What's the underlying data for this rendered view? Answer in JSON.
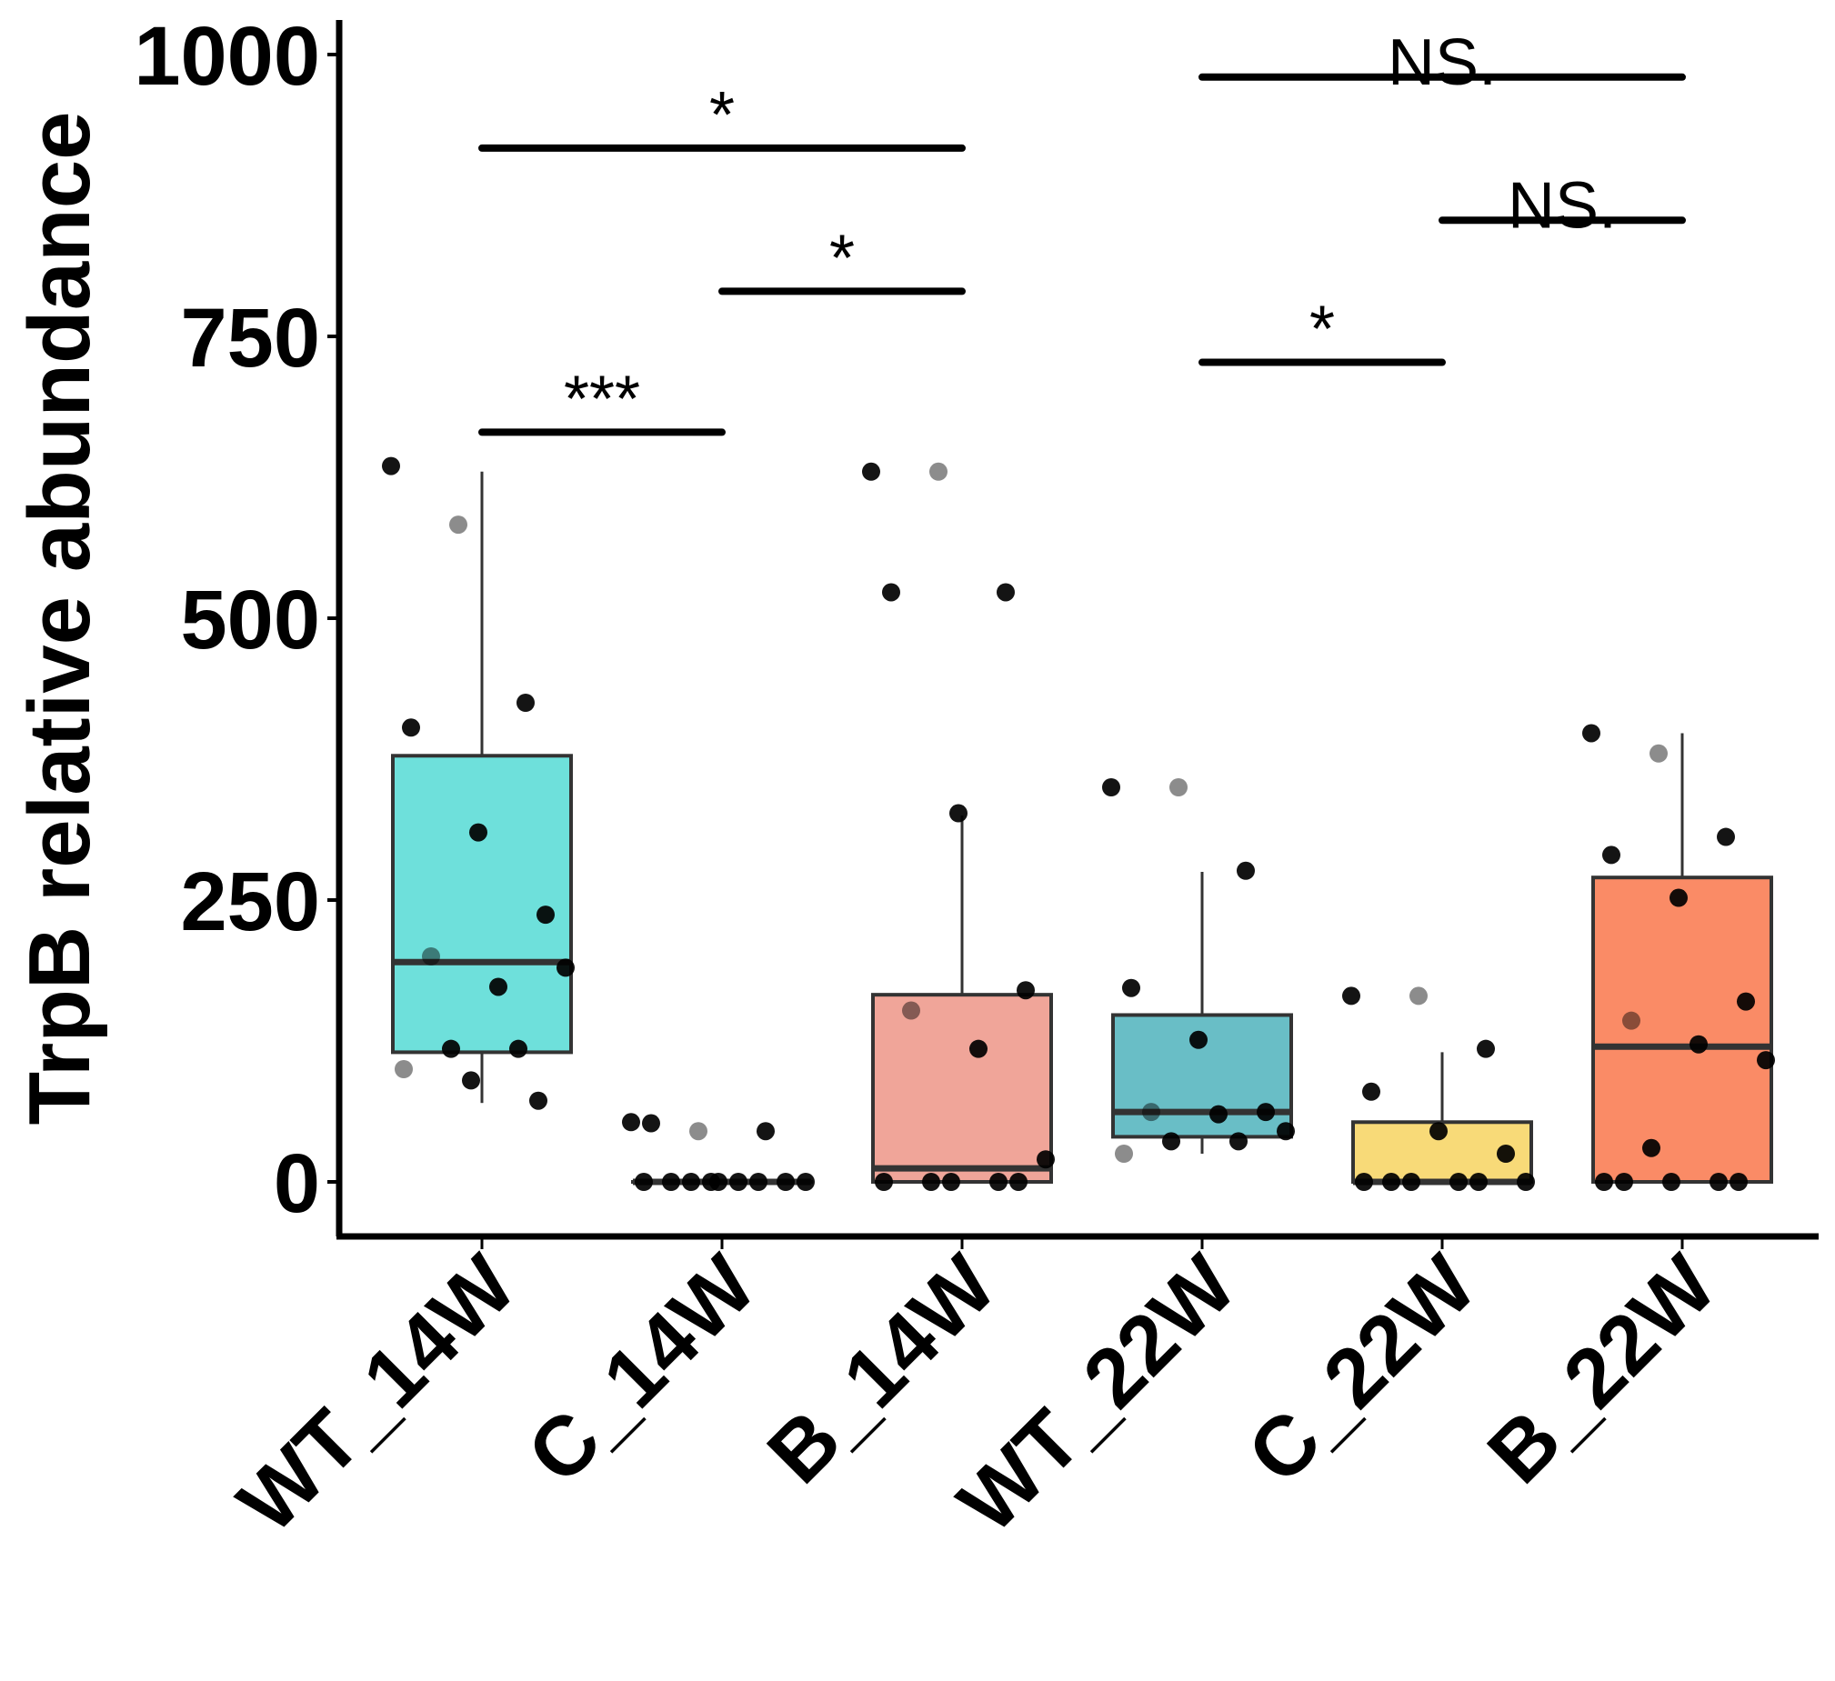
{
  "chart_data": {
    "type": "box",
    "ylabel": "TrpB relative abundance",
    "xlabel": "",
    "ylim": [
      -50,
      1020
    ],
    "yticks": [
      0,
      250,
      500,
      750,
      1000
    ],
    "categories": [
      "WT_14W",
      "C_14W",
      "B_14W",
      "WT_22W",
      "C_22W",
      "B_22W"
    ],
    "boxes": [
      {
        "category": "WT_14W",
        "color": "#6ee0db",
        "q1": 115,
        "median": 195,
        "q3": 378,
        "whisker_low": 70,
        "whisker_high": 630,
        "points": [
          635,
          583,
          425,
          403,
          310,
          237,
          200,
          173,
          190,
          118,
          118,
          100,
          90,
          72
        ]
      },
      {
        "category": "C_14W",
        "color": "#6ee0db",
        "q1": 0,
        "median": 0,
        "q3": 0,
        "whisker_low": 0,
        "whisker_high": 0,
        "points": [
          53,
          45,
          45,
          52,
          0,
          0,
          0,
          0,
          0,
          0,
          0,
          0,
          0
        ]
      },
      {
        "category": "B_14W",
        "color": "#f0a599",
        "q1": 0,
        "median": 12,
        "q3": 166,
        "whisker_low": 0,
        "whisker_high": 325,
        "points": [
          630,
          630,
          523,
          523,
          327,
          170,
          152,
          118,
          20,
          0,
          0,
          0,
          0,
          0
        ]
      },
      {
        "category": "WT_22W",
        "color": "#69bec6",
        "q1": 40,
        "median": 62,
        "q3": 148,
        "whisker_low": 25,
        "whisker_high": 275,
        "points": [
          350,
          350,
          276,
          172,
          126,
          62,
          62,
          60,
          45,
          36,
          36,
          25
        ]
      },
      {
        "category": "C_22W",
        "color": "#f8da78",
        "q1": 0,
        "median": 0,
        "q3": 53,
        "whisker_low": 0,
        "whisker_high": 115,
        "points": [
          165,
          165,
          118,
          80,
          45,
          25,
          0,
          0,
          0,
          0,
          0,
          0
        ]
      },
      {
        "category": "B_22W",
        "color": "#fa8b66",
        "q1": 0,
        "median": 120,
        "q3": 270,
        "whisker_low": 0,
        "whisker_high": 398,
        "points": [
          398,
          380,
          306,
          290,
          252,
          160,
          143,
          122,
          108,
          30,
          0,
          0,
          0,
          0,
          0
        ]
      }
    ],
    "significance": [
      {
        "from": "WT_14W",
        "to": "C_14W",
        "y": 665,
        "label": "***"
      },
      {
        "from": "C_14W",
        "to": "B_14W",
        "y": 790,
        "label": "*"
      },
      {
        "from": "WT_14W",
        "to": "B_14W",
        "y": 917,
        "label": "*"
      },
      {
        "from": "WT_22W",
        "to": "C_22W",
        "y": 727,
        "label": "*"
      },
      {
        "from": "C_22W",
        "to": "B_22W",
        "y": 853,
        "label": "NS."
      },
      {
        "from": "WT_22W",
        "to": "B_22W",
        "y": 980,
        "label": "NS."
      }
    ]
  }
}
